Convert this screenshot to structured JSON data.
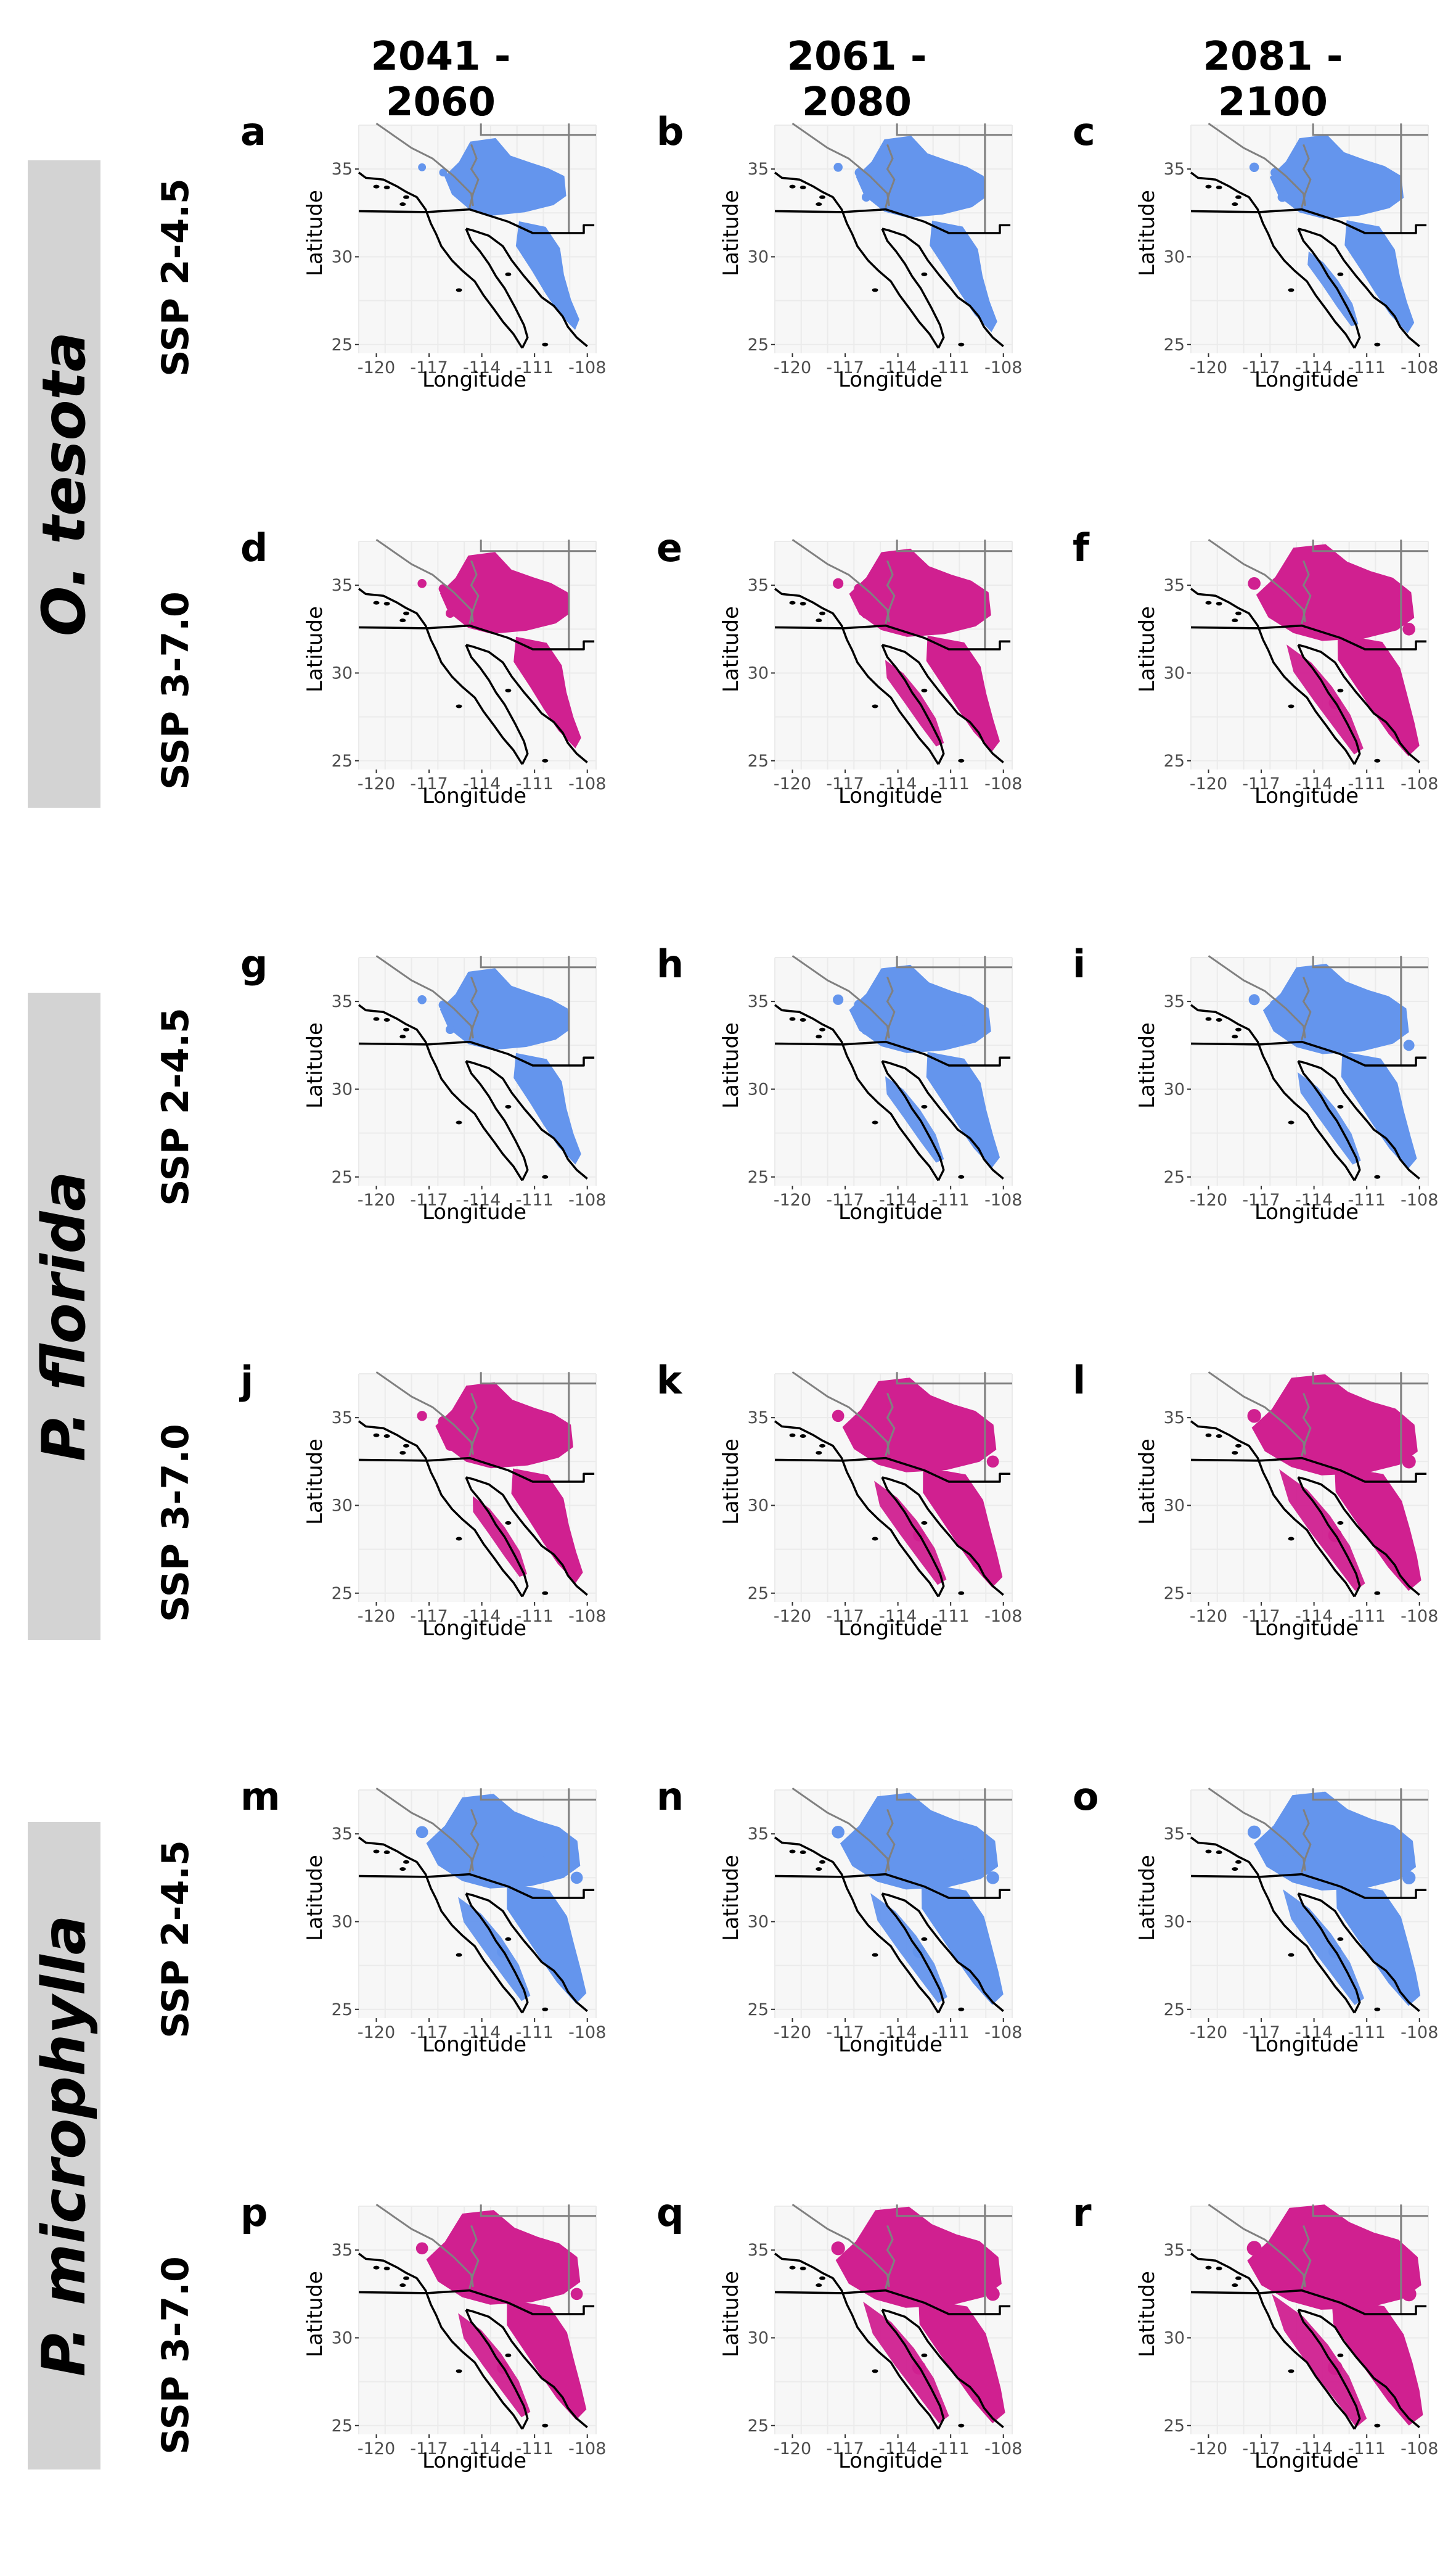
{
  "columns": [
    "2041 - 2060",
    "2061 - 2080",
    "2081 - 2100"
  ],
  "species": [
    {
      "name": "O. tesota",
      "scenarios": [
        {
          "label": "SSP 2-4.5",
          "color_key": "ssp245",
          "panels": [
            "a",
            "b",
            "c"
          ]
        },
        {
          "label": "SSP 3-7.0",
          "color_key": "ssp370",
          "panels": [
            "d",
            "e",
            "f"
          ]
        }
      ]
    },
    {
      "name": "P. florida",
      "scenarios": [
        {
          "label": "SSP 2-4.5",
          "color_key": "ssp245",
          "panels": [
            "g",
            "h",
            "i"
          ]
        },
        {
          "label": "SSP 3-7.0",
          "color_key": "ssp370",
          "panels": [
            "j",
            "k",
            "l"
          ]
        }
      ]
    },
    {
      "name": "P. microphylla",
      "scenarios": [
        {
          "label": "SSP 2-4.5",
          "color_key": "ssp245",
          "panels": [
            "m",
            "n",
            "o"
          ]
        },
        {
          "label": "SSP 3-7.0",
          "color_key": "ssp370",
          "panels": [
            "p",
            "q",
            "r"
          ]
        }
      ]
    }
  ],
  "colors": {
    "ssp245": "#6495ED",
    "ssp370": "#D02090",
    "grid": "#ebebeb",
    "panel_bg": "#f7f7f7",
    "state_lines": "#808080",
    "coast": "#000000"
  },
  "axes": {
    "xlabel": "Longitude",
    "ylabel": "Latitude",
    "x_ticks": [
      "-120",
      "-117",
      "-114",
      "-111",
      "-108"
    ],
    "y_ticks": [
      "35",
      "30",
      "25"
    ]
  },
  "map_extent": {
    "lon": [
      -121,
      -107.5
    ],
    "lat": [
      24.5,
      37.5
    ]
  },
  "suitability_extent": [
    [
      0.45,
      0.55,
      0.6
    ],
    [
      0.55,
      0.7,
      0.9
    ],
    [
      0.55,
      0.7,
      0.75
    ],
    [
      0.65,
      0.85,
      1.0
    ],
    [
      0.85,
      0.9,
      0.95
    ],
    [
      0.85,
      1.0,
      1.1
    ]
  ]
}
